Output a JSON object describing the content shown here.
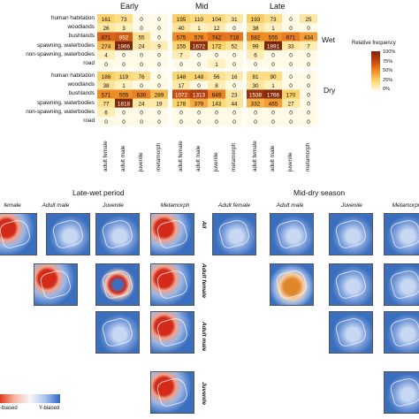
{
  "chart_data": [
    {
      "type": "heatmap",
      "panel_titles": [
        "Early",
        "Mid",
        "Late"
      ],
      "season_labels": [
        "Wet",
        "Dry"
      ],
      "rows": [
        "human habitation",
        "woodlands",
        "bushlands",
        "spawning, waterbodies",
        "non-spawning, waterbodies",
        "road"
      ],
      "columns": [
        "adult female",
        "adult male",
        "juvenile",
        "metamorph"
      ],
      "legend": {
        "title": "Relative frequency",
        "ticks": [
          "100%",
          "75%",
          "50%",
          "25%",
          "0%"
        ]
      },
      "values": {
        "Wet": {
          "Early": [
            [
              161,
              73,
              0,
              0
            ],
            [
              26,
              3,
              0,
              0
            ],
            [
              871,
              952,
              55,
              0
            ],
            [
              274,
              1866,
              24,
              9
            ],
            [
              4,
              0,
              0,
              0
            ],
            [
              0,
              0,
              0,
              0
            ]
          ],
          "Mid": [
            [
              195,
              110,
              104,
              31
            ],
            [
              40,
              1,
              12,
              0
            ],
            [
              575,
              576,
              742,
              718
            ],
            [
              155,
              1672,
              172,
              52
            ],
            [
              7,
              0,
              0,
              0
            ],
            [
              0,
              0,
              1,
              0
            ]
          ],
          "Late": [
            [
              193,
              73,
              0,
              25
            ],
            [
              38,
              1,
              0,
              0
            ],
            [
              582,
              555,
              671,
              434
            ],
            [
              99,
              1891,
              33,
              7
            ],
            [
              6,
              0,
              0,
              0
            ],
            [
              0,
              0,
              0,
              0
            ]
          ]
        },
        "Dry": {
          "Early": [
            [
              188,
              119,
              76,
              0
            ],
            [
              38,
              1,
              0,
              0
            ],
            [
              571,
              555,
              630,
              289
            ],
            [
              77,
              1818,
              24,
              19
            ],
            [
              6,
              0,
              0,
              0
            ],
            [
              0,
              0,
              0,
              0
            ]
          ],
          "Mid": [
            [
              148,
              148,
              56,
              16
            ],
            [
              17,
              0,
              8,
              0
            ],
            [
              1072,
              1313,
              649,
              23
            ],
            [
              178,
              379,
              143,
              44
            ],
            [
              0,
              0,
              0,
              0
            ],
            [
              0,
              0,
              0,
              0
            ]
          ],
          "Late": [
            [
              81,
              90,
              0,
              0
            ],
            [
              30,
              1,
              0,
              0
            ],
            [
              1538,
              1766,
              170,
              0
            ],
            [
              332,
              465,
              27,
              0
            ],
            [
              0,
              0,
              0,
              0
            ],
            [
              0,
              0,
              0,
              0
            ]
          ]
        }
      }
    },
    {
      "type": "heatmap",
      "section_titles": [
        "Late-wet period",
        "Mid-dry season"
      ],
      "map_columns_left": [
        "female",
        "Adult male",
        "Juvenile",
        "Metamorph"
      ],
      "map_columns_right": [
        "Adult female",
        "Adult male",
        "Juvenile",
        "Metamorph"
      ],
      "map_rows": [
        "All",
        "Adult female",
        "Adult male",
        "Juvenile"
      ],
      "colorbar_labels": [
        "-biased",
        "Y-biased"
      ]
    }
  ],
  "colors": {
    "high": "#7a2608",
    "mid": "#e3761e",
    "low": "#fff0b8",
    "zero": "#fffbe6",
    "map_blue": "#3a6fc0",
    "map_red": "#d42a1a"
  }
}
